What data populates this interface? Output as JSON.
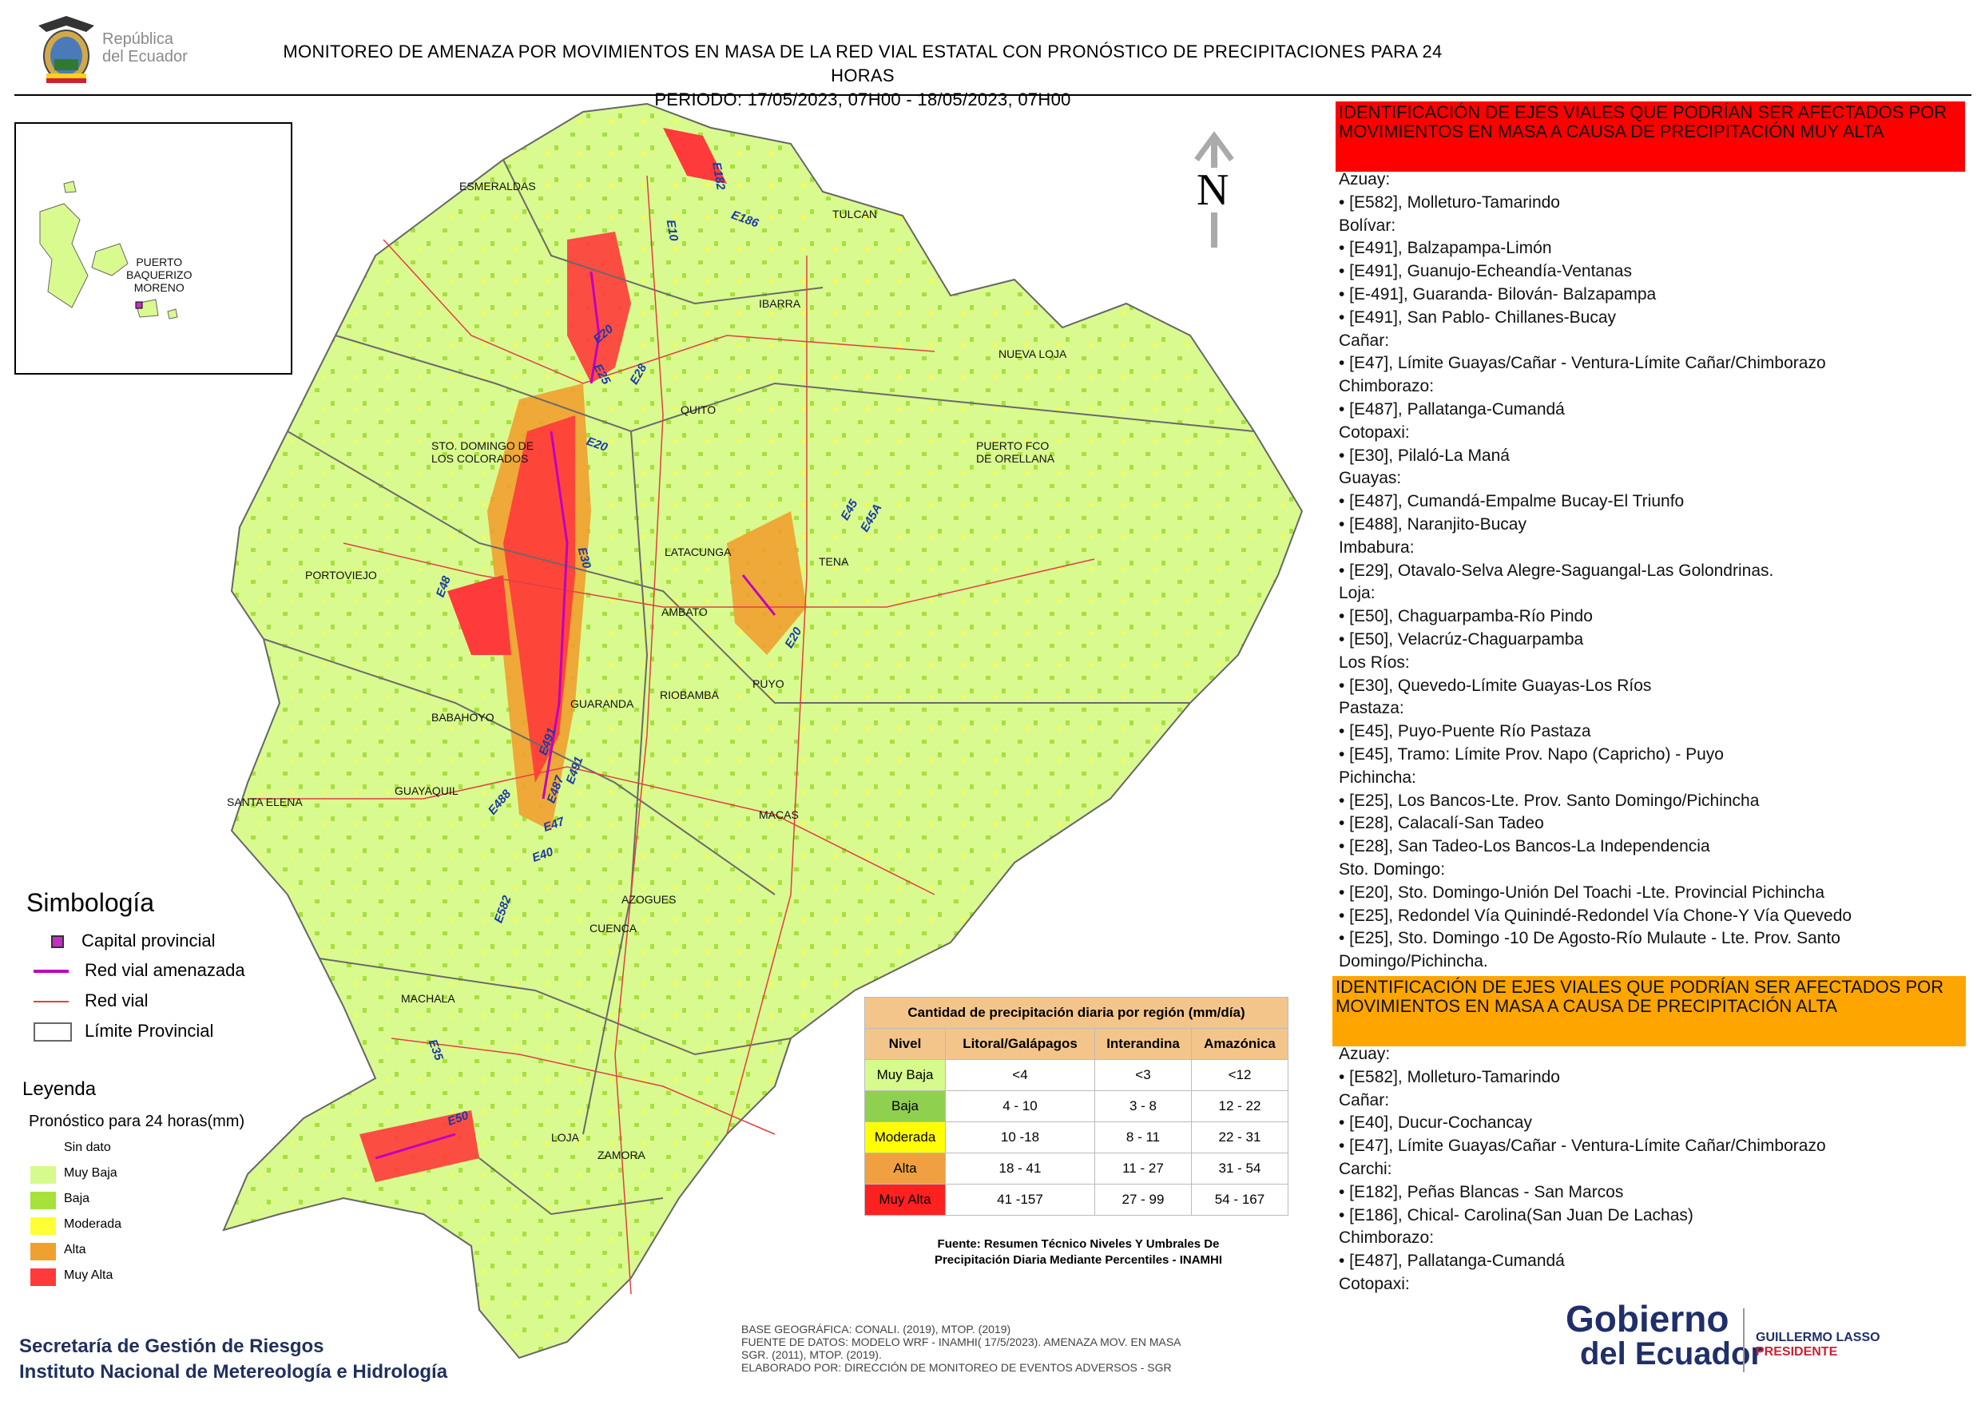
{
  "header": {
    "title_line1": "MONITOREO DE AMENAZA POR MOVIMIENTOS EN MASA DE LA RED VIAL  ESTATAL  CON PRONÓSTICO  DE  PRECIPITACIONES PARA 24 HORAS",
    "title_line2": "PERIODO: 17/05/2023, 07H00 - 18/05/2023, 07H00",
    "republic_line1": "República",
    "republic_line2": "del Ecuador"
  },
  "map": {
    "north_label": "N",
    "cities": [
      {
        "name": "ESMERALDAS"
      },
      {
        "name": "TULCAN"
      },
      {
        "name": "IBARRA"
      },
      {
        "name": "NUEVA LOJA"
      },
      {
        "name": "QUITO"
      },
      {
        "name": "STO. DOMINGO DE\nLOS COLORADOS"
      },
      {
        "name": "PUERTO FCO\nDE ORELLANA"
      },
      {
        "name": "TENA"
      },
      {
        "name": "LATACUNGA"
      },
      {
        "name": "PORTOVIEJO"
      },
      {
        "name": "AMBATO"
      },
      {
        "name": "PUYO"
      },
      {
        "name": "GUARANDA"
      },
      {
        "name": "RIOBAMBA"
      },
      {
        "name": "BABAHOYO"
      },
      {
        "name": "SANTA ELENA"
      },
      {
        "name": "GUAYAQUIL"
      },
      {
        "name": "MACAS"
      },
      {
        "name": "AZOGUES"
      },
      {
        "name": "CUENCA"
      },
      {
        "name": "MACHALA"
      },
      {
        "name": "LOJA"
      },
      {
        "name": "ZAMORA"
      },
      {
        "name": "PUERTO\nBAQUERIZO\nMORENO"
      }
    ],
    "roads": [
      "E182",
      "E186",
      "E10",
      "E20",
      "E25",
      "E28",
      "E20",
      "E30",
      "E45",
      "E45A",
      "E20",
      "E48",
      "E491",
      "E491",
      "E488",
      "E487",
      "E47",
      "E40",
      "E582",
      "E35",
      "E50"
    ]
  },
  "simbologia": {
    "title": "Simbología",
    "items": [
      {
        "label": "Capital provincial"
      },
      {
        "label": "Red vial amenazada"
      },
      {
        "label": "Red vial"
      },
      {
        "label": "Límite Provincial"
      }
    ]
  },
  "leyenda": {
    "title": "Leyenda",
    "subtitle": "Pronóstico para 24 horas(mm)",
    "items": [
      {
        "label": "Sin dato",
        "color": "#ffffff"
      },
      {
        "label": " Muy Baja",
        "color": "#d6fb8c"
      },
      {
        "label": "Baja",
        "color": "#a6e23a"
      },
      {
        "label": "Moderada",
        "color": "#ffff33"
      },
      {
        "label": "Alta",
        "color": "#f0a030"
      },
      {
        "label": "Muy Alta",
        "color": "#ff3a3a"
      }
    ]
  },
  "precip_table": {
    "title": "Cantidad de precipitación diaria por región (mm/día)",
    "headers": [
      "Nivel",
      "Litoral/Galápagos",
      "Interandina",
      "Amazónica"
    ],
    "rows": [
      {
        "nivel": "Muy Baja",
        "color": "#d6fb8c",
        "litoral": "<4",
        "interandina": "<3",
        "amazonica": "<12"
      },
      {
        "nivel": "Baja",
        "color": "#8fd14f",
        "litoral": "4 - 10",
        "interandina": "3 - 8",
        "amazonica": "12 - 22"
      },
      {
        "nivel": "Moderada",
        "color": "#ffff00",
        "litoral": "10 -18",
        "interandina": "8 - 11",
        "amazonica": "22 - 31"
      },
      {
        "nivel": "Alta",
        "color": "#f0a040",
        "litoral": "18 - 41",
        "interandina": "11 - 27",
        "amazonica": "31 - 54"
      },
      {
        "nivel": "Muy Alta",
        "color": "#ff2020",
        "litoral": "41 -157",
        "interandina": "27 - 99",
        "amazonica": "54 - 167"
      }
    ],
    "source_line1": "Fuente: Resumen Técnico Niveles Y Umbrales De",
    "source_line2": "Precipitación Diaria Mediante Percentiles - INAMHI"
  },
  "credits": {
    "line1": "Secretaría de Gestión de Riesgos",
    "line2": "Instituto Nacional de Metereología e Hidrología"
  },
  "base_info": {
    "line1": "BASE GEOGRÁFICA: CONALI. (2019), MTOP. (2019)",
    "line2": "FUENTE DE DATOS: MODELO WRF - INAMHI( 17/5/2023).  AMENAZA MOV. EN MASA",
    "line3": "SGR. (2011), MTOP. (2019).",
    "line4": "ELABORADO POR: DIRECCIÓN DE MONITOREO DE EVENTOS ADVERSOS - SGR"
  },
  "panel_muy_alta": {
    "title": "IDENTIFICACIÓN DE EJES VIALES QUE PODRÍAN SER AFECTADOS POR MOVIMIENTOS EN MASA A CAUSA DE PRECIPITACIÓN MUY ALTA",
    "lines": [
      "Azuay:",
      "• [E582], Molleturo-Tamarindo",
      "Bolívar:",
      "• [E491], Balzapampa-Limón",
      "• [E491], Guanujo-Echeandía-Ventanas",
      "• [E-491], Guaranda- Bilován- Balzapampa",
      "• [E491], San Pablo- Chillanes-Bucay",
      "Cañar:",
      "• [E47], Límite Guayas/Cañar - Ventura-Límite Cañar/Chimborazo",
      "Chimborazo:",
      "• [E487], Pallatanga-Cumandá",
      "Cotopaxi:",
      "• [E30], Pilaló-La Maná",
      "Guayas:",
      "• [E487], Cumandá-Empalme Bucay-El Triunfo",
      "• [E488], Naranjito-Bucay",
      "Imbabura:",
      "• [E29], Otavalo-Selva Alegre-Saguangal-Las Golondrinas.",
      "Loja:",
      "• [E50], Chaguarpamba-Río Pindo",
      "• [E50], Velacrúz-Chaguarpamba",
      "Los Ríos:",
      "• [E30], Quevedo-Límite Guayas-Los Ríos",
      "Pastaza:",
      "• [E45], Puyo-Puente Río Pastaza",
      "• [E45], Tramo: Límite Prov. Napo (Capricho) - Puyo",
      "Pichincha:",
      "• [E25], Los Bancos-Lte. Prov. Santo Domingo/Pichincha",
      "• [E28], Calacalí-San Tadeo",
      "• [E28], San Tadeo-Los Bancos-La Independencia",
      "Sto. Domingo:",
      "• [E20], Sto. Domingo-Unión Del Toachi -Lte. Provincial Pichincha",
      "• [E25], Redondel Vía Quinindé-Redondel Vía Chone-Y Vía Quevedo",
      "• [E25], Sto. Domingo -10 De Agosto-Río Mulaute - Lte. Prov. Santo",
      "Domingo/Pichincha."
    ]
  },
  "panel_alta": {
    "title": "IDENTIFICACIÓN DE EJES VIALES QUE PODRÍAN SER AFECTADOS POR MOVIMIENTOS EN MASA A CAUSA DE PRECIPITACIÓN  ALTA",
    "lines": [
      "Azuay:",
      "• [E582], Molleturo-Tamarindo",
      "Cañar:",
      "• [E40], Ducur-Cochancay",
      "• [E47], Límite Guayas/Cañar - Ventura-Límite Cañar/Chimborazo",
      "Carchi:",
      "• [E182], Peñas Blancas - San Marcos",
      "• [E186], Chical- Carolina(San Juan De Lachas)",
      "Chimborazo:",
      "• [E487], Pallatanga-Cumandá",
      "Cotopaxi:"
    ]
  },
  "gobierno_logo": {
    "line1": "Gobierno",
    "line2": "del Ecuador",
    "president_name": "GUILLERMO LASSO",
    "president_title": "PRESIDENTE"
  }
}
